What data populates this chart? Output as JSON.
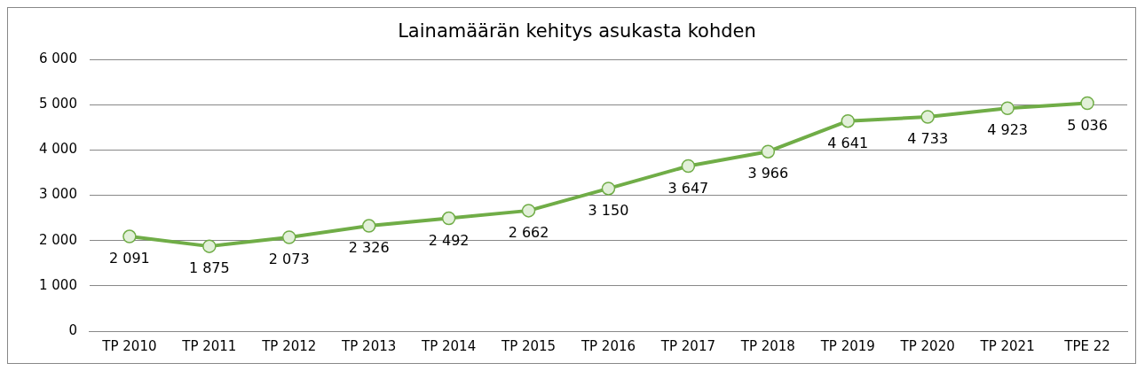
{
  "chart_data": {
    "type": "line",
    "title": "Lainamäärän kehitys asukasta kohden",
    "categories": [
      "TP 2010",
      "TP 2011",
      "TP 2012",
      "TP 2013",
      "TP 2014",
      "TP 2015",
      "TP 2016",
      "TP 2017",
      "TP 2018",
      "TP 2019",
      "TP 2020",
      "TP 2021",
      "TPE 22"
    ],
    "series": [
      {
        "color": "#70ad47",
        "values": [
          2091,
          1875,
          2073,
          2326,
          2492,
          2662,
          3150,
          3647,
          3966,
          4641,
          4733,
          4923,
          5036
        ],
        "value_labels": [
          "2 091",
          "1 875",
          "2 073",
          "2 326",
          "2 492",
          "2 662",
          "3 150",
          "3 647",
          "3 966",
          "4 641",
          "4 733",
          "4 923",
          "5 036"
        ]
      }
    ],
    "ylim": [
      0,
      6000
    ],
    "yticks": [
      {
        "value": 0,
        "label": "0"
      },
      {
        "value": 1000,
        "label": "1 000"
      },
      {
        "value": 2000,
        "label": "2 000"
      },
      {
        "value": 3000,
        "label": "3 000"
      },
      {
        "value": 4000,
        "label": "4 000"
      },
      {
        "value": 5000,
        "label": "5 000"
      },
      {
        "value": 6000,
        "label": "6 000"
      }
    ],
    "grid": "y",
    "legend": false,
    "marker": "circle",
    "line_style": "solid"
  }
}
